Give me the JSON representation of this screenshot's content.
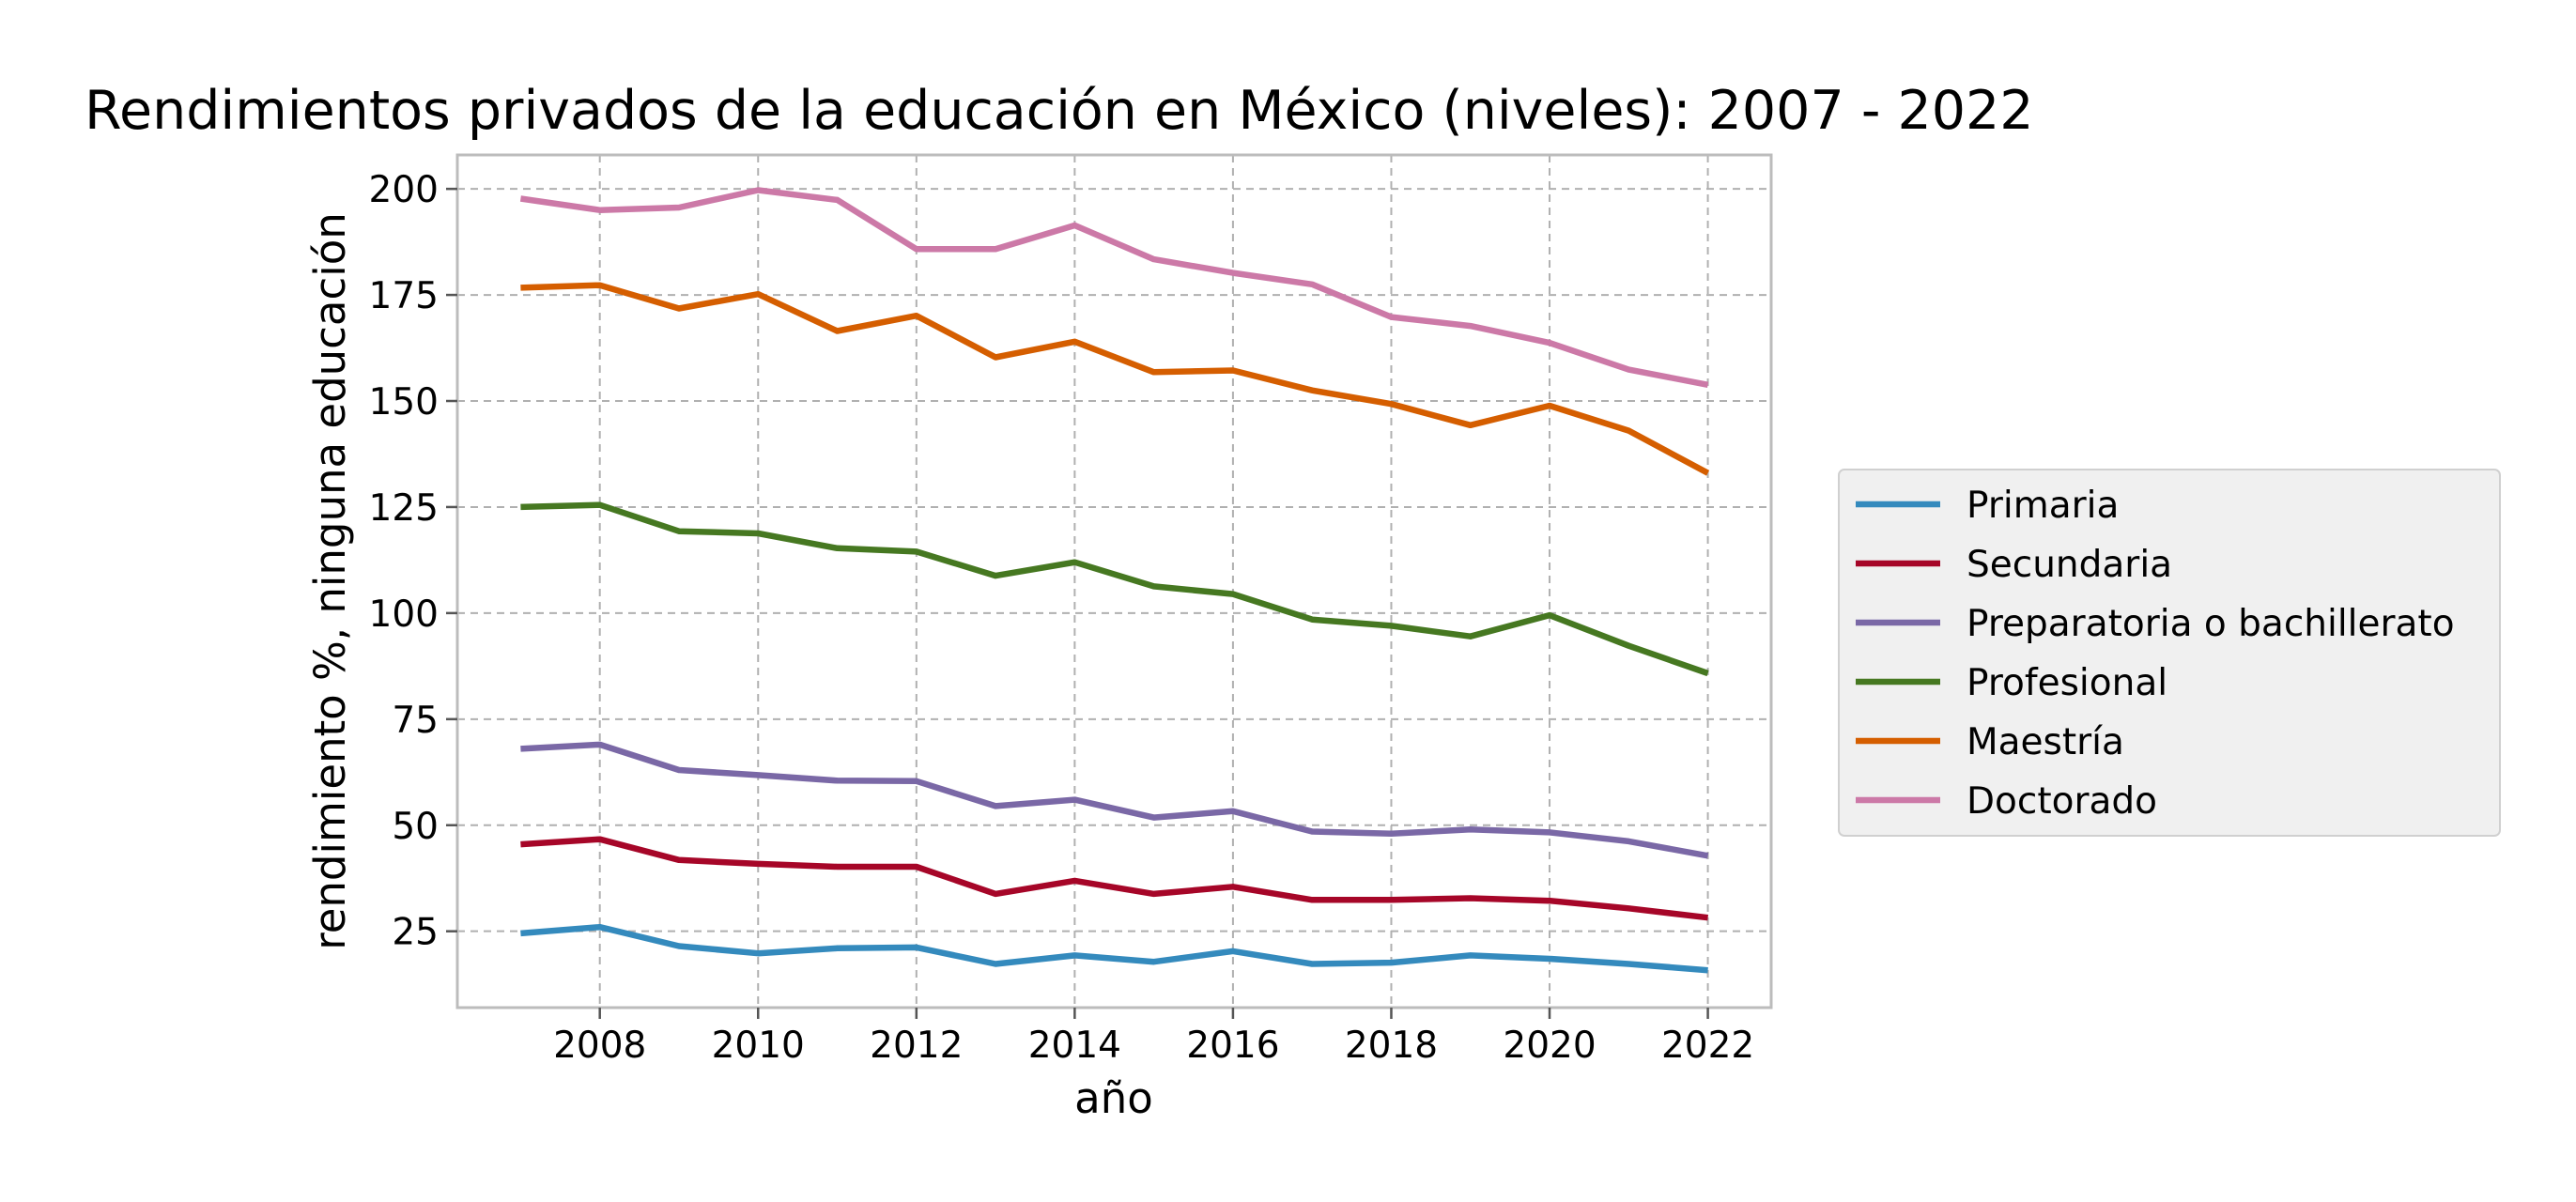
{
  "chart_data": {
    "type": "line",
    "title": "Rendimientos privados de la educación en México (niveles): 2007 - 2022",
    "xlabel": "año",
    "ylabel": "rendimiento %, ninguna educación",
    "x": [
      2007,
      2008,
      2009,
      2010,
      2011,
      2012,
      2013,
      2014,
      2015,
      2016,
      2017,
      2018,
      2019,
      2020,
      2021,
      2022
    ],
    "xlim": [
      2006.2,
      2022.8
    ],
    "ylim": [
      7,
      208
    ],
    "xticks": [
      2008,
      2010,
      2012,
      2014,
      2016,
      2018,
      2020,
      2022
    ],
    "yticks": [
      25,
      50,
      75,
      100,
      125,
      150,
      175,
      200
    ],
    "grid": true,
    "legend_position": "right-outside",
    "series": [
      {
        "name": "Primaria",
        "color": "#348abd",
        "values": [
          24.5,
          26,
          21.5,
          19.8,
          21,
          21.2,
          17.3,
          19.3,
          17.8,
          20.3,
          17.3,
          17.6,
          19.3,
          18.5,
          17.3,
          15.8
        ]
      },
      {
        "name": "Secundaria",
        "color": "#a60628",
        "values": [
          45.5,
          46.7,
          41.8,
          40.9,
          40.2,
          40.2,
          33.8,
          36.9,
          33.8,
          35.5,
          32.4,
          32.4,
          32.8,
          32.2,
          30.4,
          28.2
        ]
      },
      {
        "name": "Preparatoria o bachillerato",
        "color": "#7a68a6",
        "values": [
          68,
          69,
          63,
          61.8,
          60.5,
          60.4,
          54.5,
          56,
          51.8,
          53.3,
          48.5,
          48,
          49,
          48.3,
          46.2,
          42.8
        ]
      },
      {
        "name": "Profesional",
        "color": "#467821",
        "values": [
          125,
          125.5,
          119.3,
          118.8,
          115.3,
          114.5,
          108.8,
          112,
          106.3,
          104.5,
          98.5,
          97,
          94.5,
          99.5,
          92.3,
          85.8
        ]
      },
      {
        "name": "Maestría",
        "color": "#d55e00",
        "values": [
          176.7,
          177.3,
          171.8,
          175.2,
          166.5,
          170.1,
          160.3,
          164,
          156.8,
          157.2,
          152.5,
          149.3,
          144.3,
          148.9,
          143,
          133
        ]
      },
      {
        "name": "Doctorado",
        "color": "#cc79a7",
        "values": [
          197.7,
          195,
          195.6,
          199.7,
          197.4,
          185.8,
          185.8,
          191.4,
          183.4,
          180.2,
          177.5,
          169.8,
          167.7,
          163.7,
          157.4,
          153.8
        ]
      }
    ]
  }
}
